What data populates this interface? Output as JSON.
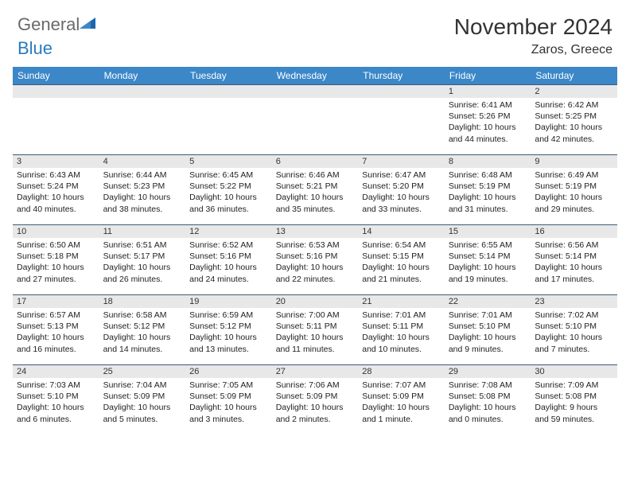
{
  "logo": {
    "textGray": "General",
    "textBlue": "Blue"
  },
  "title": "November 2024",
  "location": "Zaros, Greece",
  "styling": {
    "pageWidth": 792,
    "pageHeight": 612,
    "headerBg": "#3b87c8",
    "headerText": "#ffffff",
    "dayNumBg": "#e8e8e8",
    "dayBorderTop": "#3b5a7a",
    "bodyText": "#222222",
    "titleColor": "#333333",
    "logoGray": "#6a6a6a",
    "logoBlue": "#2a7bbf",
    "fontFamily": "Arial",
    "titleFontSize": 28,
    "locationFontSize": 16,
    "headerFontSize": 12,
    "cellFontSize": 10.5
  },
  "weekdays": [
    "Sunday",
    "Monday",
    "Tuesday",
    "Wednesday",
    "Thursday",
    "Friday",
    "Saturday"
  ],
  "weeks": [
    [
      null,
      null,
      null,
      null,
      null,
      {
        "n": "1",
        "sr": "Sunrise: 6:41 AM",
        "ss": "Sunset: 5:26 PM",
        "d1": "Daylight: 10 hours",
        "d2": "and 44 minutes."
      },
      {
        "n": "2",
        "sr": "Sunrise: 6:42 AM",
        "ss": "Sunset: 5:25 PM",
        "d1": "Daylight: 10 hours",
        "d2": "and 42 minutes."
      }
    ],
    [
      {
        "n": "3",
        "sr": "Sunrise: 6:43 AM",
        "ss": "Sunset: 5:24 PM",
        "d1": "Daylight: 10 hours",
        "d2": "and 40 minutes."
      },
      {
        "n": "4",
        "sr": "Sunrise: 6:44 AM",
        "ss": "Sunset: 5:23 PM",
        "d1": "Daylight: 10 hours",
        "d2": "and 38 minutes."
      },
      {
        "n": "5",
        "sr": "Sunrise: 6:45 AM",
        "ss": "Sunset: 5:22 PM",
        "d1": "Daylight: 10 hours",
        "d2": "and 36 minutes."
      },
      {
        "n": "6",
        "sr": "Sunrise: 6:46 AM",
        "ss": "Sunset: 5:21 PM",
        "d1": "Daylight: 10 hours",
        "d2": "and 35 minutes."
      },
      {
        "n": "7",
        "sr": "Sunrise: 6:47 AM",
        "ss": "Sunset: 5:20 PM",
        "d1": "Daylight: 10 hours",
        "d2": "and 33 minutes."
      },
      {
        "n": "8",
        "sr": "Sunrise: 6:48 AM",
        "ss": "Sunset: 5:19 PM",
        "d1": "Daylight: 10 hours",
        "d2": "and 31 minutes."
      },
      {
        "n": "9",
        "sr": "Sunrise: 6:49 AM",
        "ss": "Sunset: 5:19 PM",
        "d1": "Daylight: 10 hours",
        "d2": "and 29 minutes."
      }
    ],
    [
      {
        "n": "10",
        "sr": "Sunrise: 6:50 AM",
        "ss": "Sunset: 5:18 PM",
        "d1": "Daylight: 10 hours",
        "d2": "and 27 minutes."
      },
      {
        "n": "11",
        "sr": "Sunrise: 6:51 AM",
        "ss": "Sunset: 5:17 PM",
        "d1": "Daylight: 10 hours",
        "d2": "and 26 minutes."
      },
      {
        "n": "12",
        "sr": "Sunrise: 6:52 AM",
        "ss": "Sunset: 5:16 PM",
        "d1": "Daylight: 10 hours",
        "d2": "and 24 minutes."
      },
      {
        "n": "13",
        "sr": "Sunrise: 6:53 AM",
        "ss": "Sunset: 5:16 PM",
        "d1": "Daylight: 10 hours",
        "d2": "and 22 minutes."
      },
      {
        "n": "14",
        "sr": "Sunrise: 6:54 AM",
        "ss": "Sunset: 5:15 PM",
        "d1": "Daylight: 10 hours",
        "d2": "and 21 minutes."
      },
      {
        "n": "15",
        "sr": "Sunrise: 6:55 AM",
        "ss": "Sunset: 5:14 PM",
        "d1": "Daylight: 10 hours",
        "d2": "and 19 minutes."
      },
      {
        "n": "16",
        "sr": "Sunrise: 6:56 AM",
        "ss": "Sunset: 5:14 PM",
        "d1": "Daylight: 10 hours",
        "d2": "and 17 minutes."
      }
    ],
    [
      {
        "n": "17",
        "sr": "Sunrise: 6:57 AM",
        "ss": "Sunset: 5:13 PM",
        "d1": "Daylight: 10 hours",
        "d2": "and 16 minutes."
      },
      {
        "n": "18",
        "sr": "Sunrise: 6:58 AM",
        "ss": "Sunset: 5:12 PM",
        "d1": "Daylight: 10 hours",
        "d2": "and 14 minutes."
      },
      {
        "n": "19",
        "sr": "Sunrise: 6:59 AM",
        "ss": "Sunset: 5:12 PM",
        "d1": "Daylight: 10 hours",
        "d2": "and 13 minutes."
      },
      {
        "n": "20",
        "sr": "Sunrise: 7:00 AM",
        "ss": "Sunset: 5:11 PM",
        "d1": "Daylight: 10 hours",
        "d2": "and 11 minutes."
      },
      {
        "n": "21",
        "sr": "Sunrise: 7:01 AM",
        "ss": "Sunset: 5:11 PM",
        "d1": "Daylight: 10 hours",
        "d2": "and 10 minutes."
      },
      {
        "n": "22",
        "sr": "Sunrise: 7:01 AM",
        "ss": "Sunset: 5:10 PM",
        "d1": "Daylight: 10 hours",
        "d2": "and 9 minutes."
      },
      {
        "n": "23",
        "sr": "Sunrise: 7:02 AM",
        "ss": "Sunset: 5:10 PM",
        "d1": "Daylight: 10 hours",
        "d2": "and 7 minutes."
      }
    ],
    [
      {
        "n": "24",
        "sr": "Sunrise: 7:03 AM",
        "ss": "Sunset: 5:10 PM",
        "d1": "Daylight: 10 hours",
        "d2": "and 6 minutes."
      },
      {
        "n": "25",
        "sr": "Sunrise: 7:04 AM",
        "ss": "Sunset: 5:09 PM",
        "d1": "Daylight: 10 hours",
        "d2": "and 5 minutes."
      },
      {
        "n": "26",
        "sr": "Sunrise: 7:05 AM",
        "ss": "Sunset: 5:09 PM",
        "d1": "Daylight: 10 hours",
        "d2": "and 3 minutes."
      },
      {
        "n": "27",
        "sr": "Sunrise: 7:06 AM",
        "ss": "Sunset: 5:09 PM",
        "d1": "Daylight: 10 hours",
        "d2": "and 2 minutes."
      },
      {
        "n": "28",
        "sr": "Sunrise: 7:07 AM",
        "ss": "Sunset: 5:09 PM",
        "d1": "Daylight: 10 hours",
        "d2": "and 1 minute."
      },
      {
        "n": "29",
        "sr": "Sunrise: 7:08 AM",
        "ss": "Sunset: 5:08 PM",
        "d1": "Daylight: 10 hours",
        "d2": "and 0 minutes."
      },
      {
        "n": "30",
        "sr": "Sunrise: 7:09 AM",
        "ss": "Sunset: 5:08 PM",
        "d1": "Daylight: 9 hours",
        "d2": "and 59 minutes."
      }
    ]
  ]
}
